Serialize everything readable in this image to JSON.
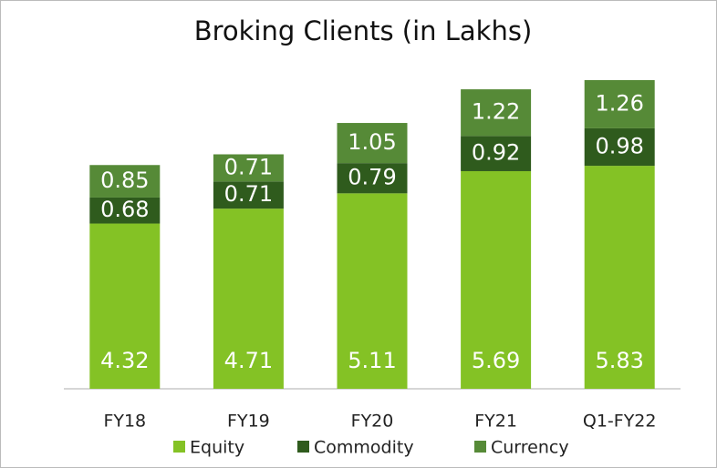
{
  "chart_data": {
    "type": "stacked_bar",
    "title": "Broking Clients (in Lakhs)",
    "categories": [
      "FY18",
      "FY19",
      "FY20",
      "FY21",
      "Q1-FY22"
    ],
    "series": [
      {
        "name": "Equity",
        "color": "#84c225",
        "values": [
          4.32,
          4.71,
          5.11,
          5.69,
          5.83
        ]
      },
      {
        "name": "Commodity",
        "color": "#2f5b1d",
        "values": [
          0.68,
          0.71,
          0.79,
          0.92,
          0.98
        ]
      },
      {
        "name": "Currency",
        "color": "#568a37",
        "values": [
          0.85,
          0.71,
          1.05,
          1.22,
          1.26
        ]
      }
    ],
    "legend": "bottom"
  }
}
